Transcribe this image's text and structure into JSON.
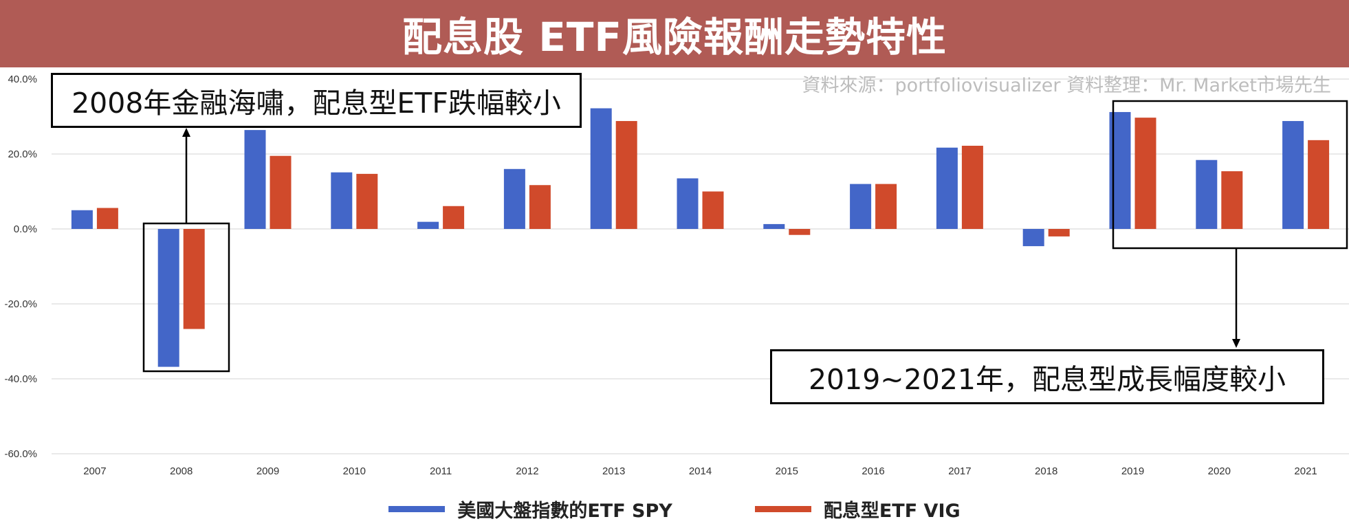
{
  "banner": {
    "title": "配息股 ETF風險報酬走勢特性"
  },
  "source_note": "資料來源：portfoliovisualizer  資料整理：Mr. Market市場先生",
  "colors": {
    "banner": "#b05b55",
    "spy": "#4366c8",
    "vig": "#d04a2b",
    "grid": "#e2e2e2"
  },
  "annotations": {
    "callout_2008": "2008年金融海嘯，配息型ETF跌幅較小",
    "callout_2019": "2019~2021年，配息型成長幅度較小"
  },
  "chart_data": {
    "type": "bar",
    "title": "",
    "xlabel": "",
    "ylabel": "",
    "categories": [
      "2007",
      "2008",
      "2009",
      "2010",
      "2011",
      "2012",
      "2013",
      "2014",
      "2015",
      "2016",
      "2017",
      "2018",
      "2019",
      "2020",
      "2021"
    ],
    "series": [
      {
        "name": "美國大盤指數的ETF SPY",
        "values": [
          5.0,
          -36.8,
          26.4,
          15.1,
          1.9,
          16.0,
          32.2,
          13.5,
          1.3,
          12.0,
          21.7,
          -4.6,
          31.2,
          18.4,
          28.8
        ]
      },
      {
        "name": "配息型ETF VIG",
        "values": [
          5.6,
          -26.7,
          19.5,
          14.7,
          6.1,
          11.7,
          28.8,
          10.0,
          -1.6,
          12.0,
          22.2,
          -2.0,
          29.7,
          15.4,
          23.7
        ]
      }
    ],
    "ylim": [
      -60,
      40
    ],
    "yticks": [
      -60,
      -40,
      -20,
      0,
      20,
      40
    ],
    "ytick_labels": [
      "-60.0%",
      "-40.0%",
      "-20.0%",
      "0.0%",
      "20.0%",
      "40.0%"
    ],
    "grid": true,
    "legend": "bottom"
  }
}
